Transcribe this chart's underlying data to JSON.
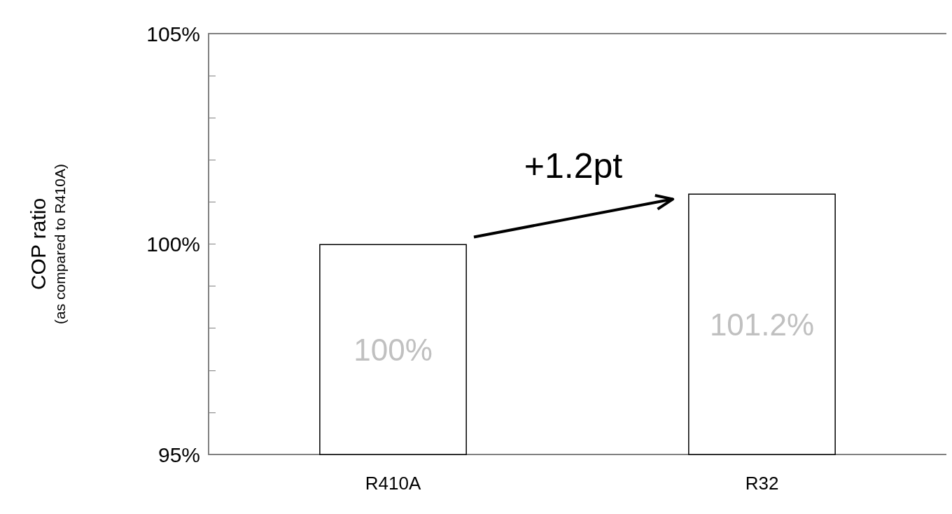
{
  "chart_data": {
    "type": "bar",
    "ylabel": "COP ratio\n(as compared to R410A)",
    "categories": [
      "R410A",
      "R32"
    ],
    "values": [
      100,
      101.2
    ],
    "color": "#ffffff",
    "value_labels": [
      "100%",
      "101.2%"
    ],
    "ylim": [
      95,
      105
    ],
    "yticks": [
      {
        "value": 95,
        "label": "95%"
      },
      {
        "value": 96,
        "label": null
      },
      {
        "value": 97,
        "label": null
      },
      {
        "value": 98,
        "label": null
      },
      {
        "value": 99,
        "label": null
      },
      {
        "value": 100,
        "label": "100%"
      },
      {
        "value": 101,
        "label": null
      },
      {
        "value": 102,
        "label": null
      },
      {
        "value": 103,
        "label": null
      },
      {
        "value": 104,
        "label": null
      },
      {
        "value": 105,
        "label": "105%"
      }
    ],
    "annotations": [
      "+1.2pt"
    ],
    "grid": false
  }
}
